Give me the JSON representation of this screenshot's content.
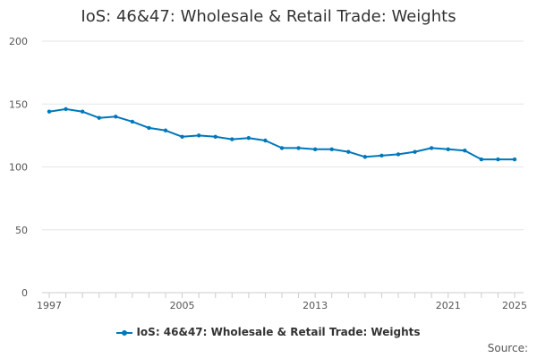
{
  "chart_data": {
    "type": "line",
    "title": "IoS: 46&47: Wholesale & Retail Trade: Weights",
    "xlabel": "",
    "ylabel": "",
    "ylim": [
      0,
      200
    ],
    "yticks": [
      0,
      50,
      100,
      150,
      200
    ],
    "xticks": [
      1997,
      2005,
      2013,
      2021,
      2025
    ],
    "grid": true,
    "legend_position": "bottom",
    "x": [
      1997,
      1998,
      1999,
      2000,
      2001,
      2002,
      2003,
      2004,
      2005,
      2006,
      2007,
      2008,
      2009,
      2010,
      2011,
      2012,
      2013,
      2014,
      2015,
      2016,
      2017,
      2018,
      2019,
      2020,
      2021,
      2022,
      2023,
      2024,
      2025
    ],
    "series": [
      {
        "name": "IoS: 46&47: Wholesale & Retail Trade: Weights",
        "color": "#0077bb",
        "values": [
          144,
          146,
          144,
          139,
          140,
          136,
          131,
          129,
          124,
          125,
          124,
          122,
          123,
          121,
          115,
          115,
          114,
          114,
          112,
          108,
          109,
          110,
          112,
          115,
          114,
          113,
          106,
          106,
          106
        ]
      }
    ]
  },
  "source_label": "Source:"
}
